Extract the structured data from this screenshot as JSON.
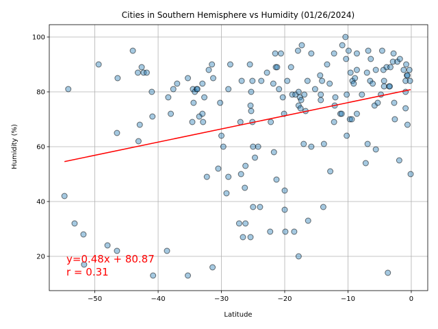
{
  "chart_data": {
    "type": "scatter",
    "title": "Cities in Southern Hemisphere vs Humidity (01/26/2024)",
    "xlabel": "Latitude",
    "ylabel": "Humidity (%)",
    "xlim": [
      -57.2,
      2.6
    ],
    "ylim": [
      7.5,
      104.5
    ],
    "xticks": [
      -50,
      -40,
      -30,
      -20,
      -10,
      0
    ],
    "yticks": [
      20,
      40,
      60,
      80,
      100
    ],
    "grid": true,
    "annotation": {
      "equation": "y=0.48x + 80.87",
      "r_text": "r = 0.31",
      "color": "#ff0000"
    },
    "regression": {
      "slope": 0.48,
      "intercept": 80.87,
      "x_range": [
        -54.8,
        -0.1
      ],
      "color": "#ff0000"
    },
    "point_color": "#1f77b4",
    "points": [
      [
        -54.8,
        42
      ],
      [
        -54.2,
        81
      ],
      [
        -53.2,
        32
      ],
      [
        -51.8,
        28
      ],
      [
        -51.7,
        17
      ],
      [
        -49.4,
        90
      ],
      [
        -48.0,
        24
      ],
      [
        -46.5,
        22
      ],
      [
        -46.4,
        85
      ],
      [
        -46.5,
        65
      ],
      [
        -44.0,
        95
      ],
      [
        -43.2,
        87
      ],
      [
        -42.6,
        89
      ],
      [
        -42.3,
        87
      ],
      [
        -41.8,
        87
      ],
      [
        -42.9,
        68
      ],
      [
        -43.1,
        62
      ],
      [
        -41.0,
        80
      ],
      [
        -40.9,
        71
      ],
      [
        -40.8,
        13
      ],
      [
        -38.6,
        22
      ],
      [
        -38.4,
        78
      ],
      [
        -38.0,
        72
      ],
      [
        -37.6,
        81
      ],
      [
        -37.0,
        83
      ],
      [
        -35.3,
        85
      ],
      [
        -35.3,
        13
      ],
      [
        -34.6,
        69
      ],
      [
        -34.5,
        81
      ],
      [
        -34.4,
        76
      ],
      [
        -34.2,
        80
      ],
      [
        -33.9,
        81
      ],
      [
        -33.8,
        81
      ],
      [
        -33.5,
        71
      ],
      [
        -33.0,
        83
      ],
      [
        -32.9,
        69
      ],
      [
        -33.0,
        72
      ],
      [
        -32.7,
        78
      ],
      [
        -32.3,
        49
      ],
      [
        -32.0,
        88
      ],
      [
        -31.5,
        90
      ],
      [
        -31.3,
        85
      ],
      [
        -31.4,
        16
      ],
      [
        -30.5,
        52
      ],
      [
        -30.2,
        76
      ],
      [
        -30.0,
        64
      ],
      [
        -29.7,
        60
      ],
      [
        -29.2,
        43
      ],
      [
        -28.9,
        49
      ],
      [
        -28.9,
        81
      ],
      [
        -28.6,
        90
      ],
      [
        -27.2,
        32
      ],
      [
        -27.0,
        69
      ],
      [
        -26.9,
        50
      ],
      [
        -26.8,
        84
      ],
      [
        -26.6,
        27
      ],
      [
        -26.3,
        45
      ],
      [
        -26.2,
        53
      ],
      [
        -26.2,
        32
      ],
      [
        -25.4,
        27
      ],
      [
        -25.5,
        90
      ],
      [
        -25.4,
        75
      ],
      [
        -25.3,
        80
      ],
      [
        -25.3,
        73
      ],
      [
        -25.1,
        69
      ],
      [
        -25.1,
        84
      ],
      [
        -25.0,
        38
      ],
      [
        -25.0,
        60
      ],
      [
        -24.7,
        56
      ],
      [
        -24.2,
        60
      ],
      [
        -23.9,
        38
      ],
      [
        -23.7,
        84
      ],
      [
        -22.8,
        87
      ],
      [
        -22.3,
        29
      ],
      [
        -22.2,
        69
      ],
      [
        -21.8,
        83
      ],
      [
        -21.7,
        58
      ],
      [
        -21.5,
        94
      ],
      [
        -21.4,
        89
      ],
      [
        -21.3,
        48
      ],
      [
        -21.2,
        89
      ],
      [
        -20.9,
        81
      ],
      [
        -20.6,
        94
      ],
      [
        -20.3,
        78
      ],
      [
        -20.1,
        72
      ],
      [
        -20.0,
        37
      ],
      [
        -20.0,
        44
      ],
      [
        -19.9,
        29
      ],
      [
        -19.6,
        84
      ],
      [
        -19.0,
        89
      ],
      [
        -18.8,
        79
      ],
      [
        -18.5,
        29
      ],
      [
        -18.3,
        79
      ],
      [
        -17.9,
        95
      ],
      [
        -17.8,
        75
      ],
      [
        -17.8,
        80
      ],
      [
        -17.8,
        20
      ],
      [
        -17.6,
        78
      ],
      [
        -17.3,
        97
      ],
      [
        -17.5,
        74
      ],
      [
        -17.4,
        77
      ],
      [
        -17.0,
        61
      ],
      [
        -16.9,
        79
      ],
      [
        -16.7,
        73
      ],
      [
        -16.4,
        84
      ],
      [
        -16.3,
        33
      ],
      [
        -15.8,
        94
      ],
      [
        -15.8,
        60
      ],
      [
        -15.2,
        81
      ],
      [
        -14.4,
        86
      ],
      [
        -14.3,
        79
      ],
      [
        -14.3,
        77
      ],
      [
        -14.1,
        84
      ],
      [
        -13.9,
        38
      ],
      [
        -13.8,
        61
      ],
      [
        -13.3,
        90
      ],
      [
        -12.9,
        83
      ],
      [
        -12.8,
        51
      ],
      [
        -12.2,
        94
      ],
      [
        -12.2,
        69
      ],
      [
        -12.1,
        75
      ],
      [
        -12.0,
        78
      ],
      [
        -11.2,
        72
      ],
      [
        -11.0,
        72
      ],
      [
        -10.9,
        97
      ],
      [
        -10.4,
        100
      ],
      [
        -10.3,
        92
      ],
      [
        -10.2,
        79
      ],
      [
        -10.2,
        64
      ],
      [
        -9.9,
        95
      ],
      [
        -9.7,
        70
      ],
      [
        -9.6,
        87
      ],
      [
        -9.4,
        70
      ],
      [
        -9.3,
        84
      ],
      [
        -9.1,
        83
      ],
      [
        -8.9,
        85
      ],
      [
        -8.6,
        94
      ],
      [
        -8.6,
        88
      ],
      [
        -8.6,
        72
      ],
      [
        -7.8,
        79
      ],
      [
        -7.2,
        54
      ],
      [
        -7.0,
        87
      ],
      [
        -6.9,
        61
      ],
      [
        -6.8,
        95
      ],
      [
        -6.5,
        84
      ],
      [
        -6.4,
        92
      ],
      [
        -6.1,
        83
      ],
      [
        -5.8,
        75
      ],
      [
        -5.6,
        59
      ],
      [
        -5.6,
        88
      ],
      [
        -5.3,
        76
      ],
      [
        -4.8,
        79
      ],
      [
        -4.6,
        95
      ],
      [
        -4.4,
        88
      ],
      [
        -4.3,
        82
      ],
      [
        -4.3,
        84
      ],
      [
        -3.9,
        89
      ],
      [
        -3.7,
        14
      ],
      [
        -3.5,
        82
      ],
      [
        -3.4,
        82
      ],
      [
        -3.3,
        89
      ],
      [
        -2.9,
        91
      ],
      [
        -2.8,
        94
      ],
      [
        -2.7,
        76
      ],
      [
        -2.6,
        70
      ],
      [
        -2.2,
        91
      ],
      [
        -1.9,
        55
      ],
      [
        -1.8,
        92
      ],
      [
        -1.2,
        88
      ],
      [
        -0.9,
        80
      ],
      [
        -0.9,
        74
      ],
      [
        -0.9,
        84
      ],
      [
        -0.8,
        90
      ],
      [
        -0.7,
        86
      ],
      [
        -0.6,
        86
      ],
      [
        -0.6,
        68
      ],
      [
        -0.3,
        88
      ],
      [
        -0.2,
        84
      ],
      [
        -0.1,
        50
      ]
    ]
  }
}
